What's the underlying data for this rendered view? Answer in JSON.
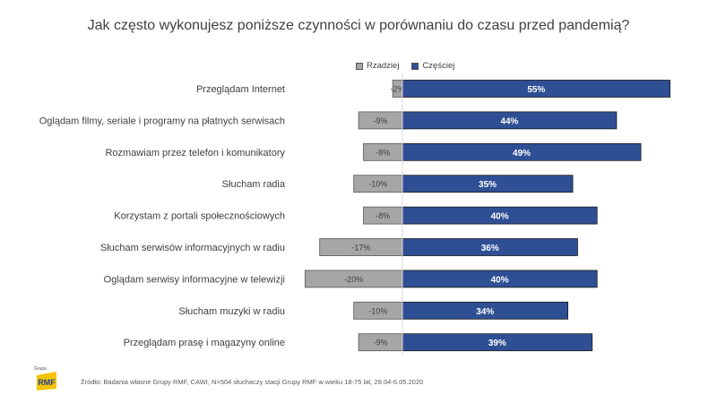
{
  "chart_data": {
    "type": "bar",
    "orientation": "horizontal",
    "stacked": "diverging",
    "title": "Jak często wykonujesz poniższe czynności w porównaniu do czasu przed pandemią?",
    "categories": [
      "Przeglądam Internet",
      "Oglądam filmy, seriale i programy na płatnych serwisach",
      "Rozmawiam przez telefon i komunikatory",
      "Słucham radia",
      "Korzystam z portali społecznościowych",
      "Słucham serwisów informacyjnych w radiu",
      "Oglądam serwisy informacyjne w telewizji",
      "Słucham muzyki w radiu",
      "Przeglądam prasę i magazyny online"
    ],
    "series": [
      {
        "name": "Rzadziej",
        "color": "#a6a6a6",
        "values": [
          -2,
          -9,
          -8,
          -10,
          -8,
          -17,
          -20,
          -10,
          -9
        ],
        "labels": [
          "-2%",
          "-9%",
          "-8%",
          "-10%",
          "-8%",
          "-17%",
          "-20%",
          "-10%",
          "-9%"
        ]
      },
      {
        "name": "Częściej",
        "color": "#2f4f94",
        "values": [
          55,
          44,
          49,
          35,
          40,
          36,
          40,
          34,
          39
        ],
        "labels": [
          "55%",
          "44%",
          "49%",
          "35%",
          "40%",
          "36%",
          "40%",
          "34%",
          "39%"
        ]
      }
    ],
    "xlim": [
      -20,
      55
    ],
    "grid": false,
    "legend_position": "top"
  },
  "source_note": "Źródło: Badania własne Grupy RMF, CAWI, N=504 słuchaczy stacji Grupy RMF w wieku 18-75 lat, 28.04-6.05.2020",
  "logo": {
    "text": "RMF",
    "small_text": "Grupa",
    "color": "#f6c400",
    "text_color": "#1f3f99"
  }
}
